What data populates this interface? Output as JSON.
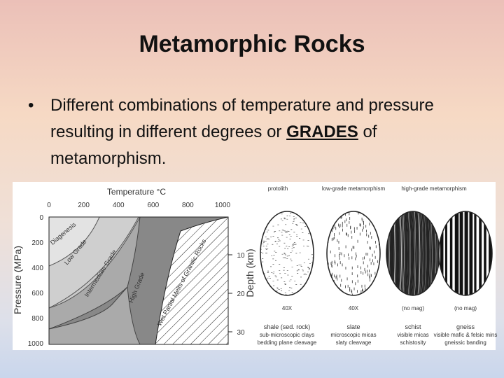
{
  "title": "Metamorphic Rocks",
  "bullet": [
    "Different combinations of temperature and pressure resulting in different degrees or ",
    "GRADES",
    " of metamorphism."
  ],
  "figure": {
    "diagram": {
      "x_label": "Temperature °C",
      "y_label": "Pressure (MPa)",
      "y2_label": "Depth (km)",
      "x_ticks": [
        "0",
        "200",
        "400",
        "600",
        "800",
        "1000"
      ],
      "y_ticks": [
        "0",
        "200",
        "400",
        "600",
        "800",
        "1000"
      ],
      "y2_ticks": [
        "10",
        "20",
        "30"
      ],
      "zones": [
        "Diagenesis",
        "Low Grade",
        "Intermediate Grade",
        "High Grade",
        "Wet Partial Melts of Granitic Rocks"
      ]
    },
    "thin_sections": {
      "headers": [
        "protolith",
        "low-grade metamorphism",
        "high-grade metamorphism"
      ],
      "samples": [
        {
          "magnification": "40X",
          "rock": "shale (sed. rock)",
          "lines": [
            "sub-microscopic clays",
            "bedding plane cleavage"
          ]
        },
        {
          "magnification": "40X",
          "rock": "slate",
          "lines": [
            "microscopic micas",
            "slaty cleavage"
          ]
        },
        {
          "magnification": "(no mag)",
          "rock": "schist",
          "lines": [
            "visible micas",
            "schistosity"
          ]
        },
        {
          "magnification": "(no mag)",
          "rock": "gneiss",
          "lines": [
            "visible mafic & felsic mins",
            "gneissic banding"
          ]
        }
      ]
    }
  }
}
